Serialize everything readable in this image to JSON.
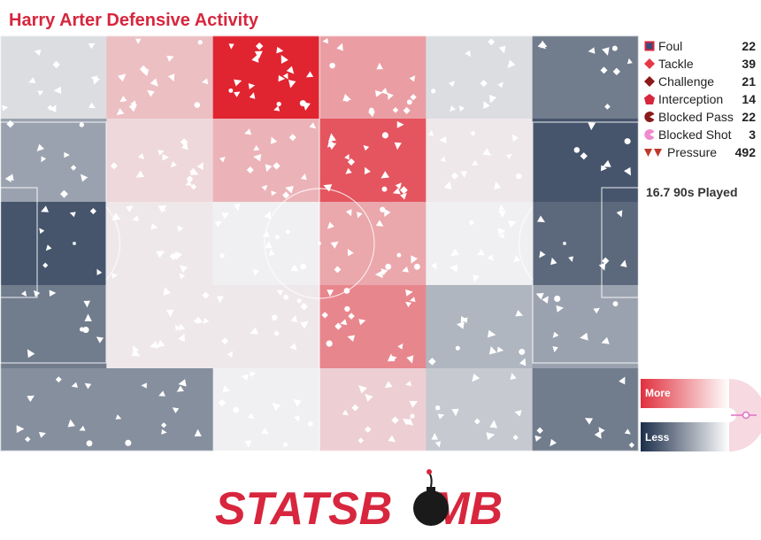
{
  "title": "Harry Arter Defensive Activity",
  "legend": [
    {
      "label": "Foul",
      "count": "22",
      "icon": "square-icon"
    },
    {
      "label": "Tackle",
      "count": "39",
      "icon": "diamond-icon"
    },
    {
      "label": "Challenge",
      "count": "21",
      "icon": "dark-diamond-icon"
    },
    {
      "label": "Interception",
      "count": "14",
      "icon": "pentagon-icon"
    },
    {
      "label": "Blocked Pass",
      "count": "22",
      "icon": "pacman-icon"
    },
    {
      "label": "Blocked Shot",
      "count": "3",
      "icon": "pink-pacman-icon"
    },
    {
      "label": "Pressure",
      "count": "492",
      "icon": "double-triangle-icon"
    }
  ],
  "played": "16.7 90s Played",
  "scale": {
    "more": "More",
    "less": "Less"
  },
  "logo": {
    "text_left": "STATSB",
    "text_right": "MB"
  },
  "colors": {
    "accent": "#d7263d",
    "dark": "#1c2e4a",
    "light": "#ffffff"
  },
  "chart_data": {
    "type": "heatmap",
    "title": "Harry Arter Defensive Activity",
    "columns": 6,
    "rows": 5,
    "intensity": [
      [
        0.45,
        0.62,
        1.0,
        0.7,
        0.45,
        0.2
      ],
      [
        0.3,
        0.56,
        0.65,
        0.88,
        0.52,
        0.1
      ],
      [
        0.1,
        0.52,
        0.5,
        0.68,
        0.5,
        0.15
      ],
      [
        0.2,
        0.52,
        0.52,
        0.76,
        0.35,
        0.3
      ],
      [
        0.25,
        0.25,
        0.5,
        0.58,
        0.4,
        0.2
      ]
    ],
    "scale": "diverging dark-navy (less) to red (more)"
  }
}
